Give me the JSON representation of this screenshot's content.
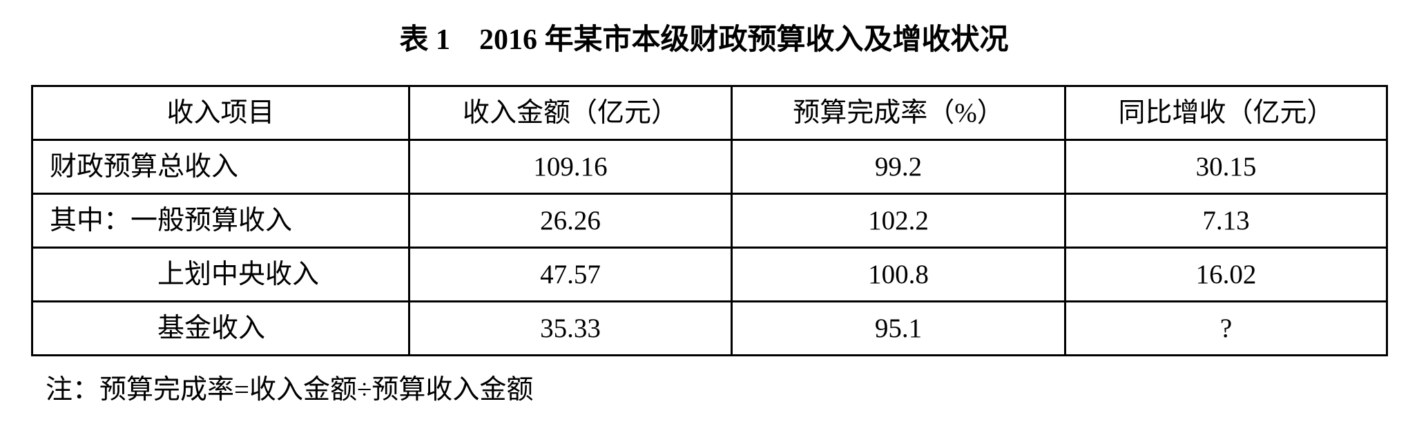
{
  "title": "表 1    2016 年某市本级财政预算收入及增收状况",
  "table": {
    "headers": [
      "收入项目",
      "收入金额（亿元）",
      "预算完成率（%）",
      "同比增收（亿元）"
    ],
    "rows": [
      [
        "财政预算总收入",
        "109.16",
        "99.2",
        "30.15"
      ],
      [
        "其中：一般预算收入",
        "26.26",
        "102.2",
        "7.13"
      ],
      [
        "上划中央收入",
        "47.57",
        "100.8",
        "16.02"
      ],
      [
        "基金收入",
        "35.33",
        "95.1",
        "?"
      ]
    ]
  },
  "note": "注：预算完成率=收入金额÷预算收入金额"
}
